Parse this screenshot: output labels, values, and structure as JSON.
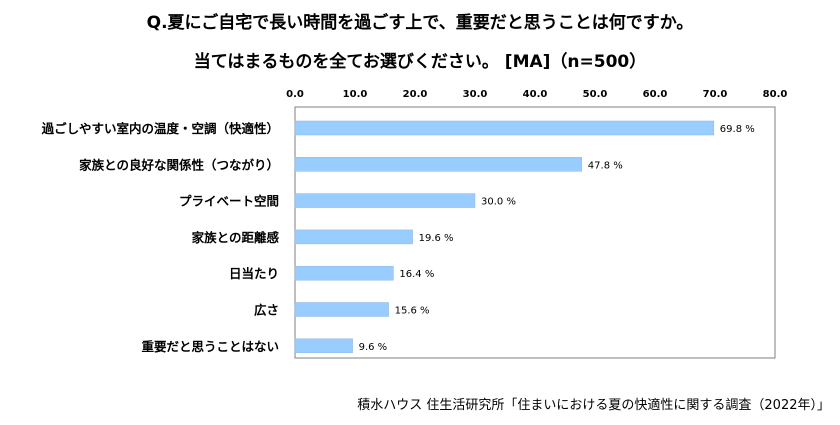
{
  "title_line1": "Q.夏にご自宅で長い時間を過ごす上で、重要だと思うことは何ですか。",
  "title_line2": "当てはまるものを全てお選びください。 [MA]（n=500）",
  "source": "積水ハウス 住生活研究所「住まいにおける夏の快適性に関する調査（2022年）」",
  "colors": {
    "bar": "#99CCFF",
    "bar_stroke": "#8FB8E0",
    "axis": "#888888",
    "frame": "#7F7F7F"
  },
  "chart_data": {
    "type": "bar",
    "orientation": "horizontal",
    "categories": [
      "過ごしやすい室内の温度・空調（快適性）",
      "家族との良好な関係性（つながり）",
      "プライベート空間",
      "家族との距離感",
      "日当たり",
      "広さ",
      "重要だと思うことはない"
    ],
    "values": [
      69.8,
      47.8,
      30.0,
      19.6,
      16.4,
      15.6,
      9.6
    ],
    "value_labels": [
      "69.8 %",
      "47.8 %",
      "30.0 %",
      "19.6 %",
      "16.4 %",
      "15.6 %",
      "9.6 %"
    ],
    "xlim": [
      0,
      80
    ],
    "ticks": [
      "0.0",
      "10.0",
      "20.0",
      "30.0",
      "40.0",
      "50.0",
      "60.0",
      "70.0",
      "80.0"
    ],
    "tick_values": [
      0,
      10,
      20,
      30,
      40,
      50,
      60,
      70,
      80
    ],
    "axis_position": "top",
    "grid": false,
    "legend": "none"
  }
}
